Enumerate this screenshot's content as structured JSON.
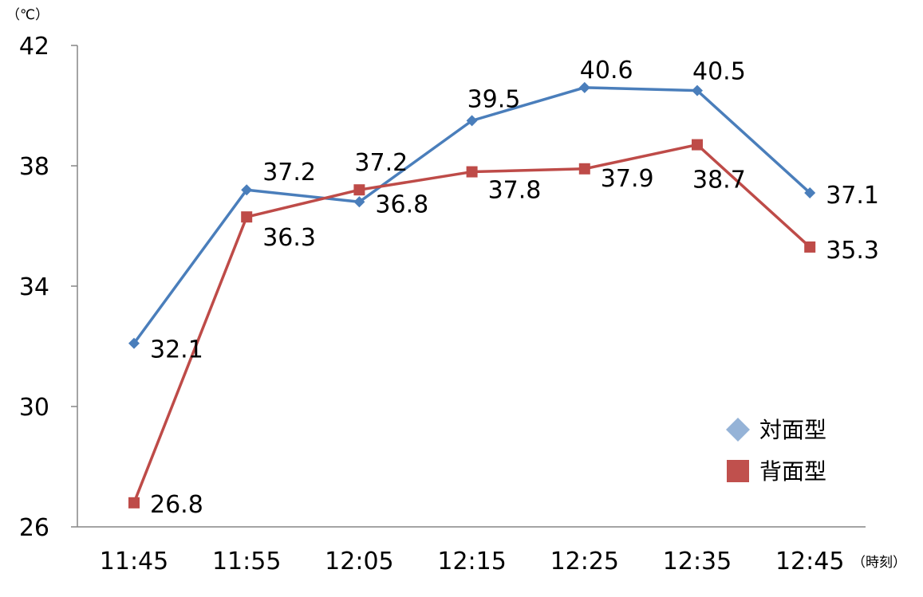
{
  "chart_data": {
    "type": "line",
    "title": "",
    "xlabel": "（時刻）",
    "ylabel": "（℃）",
    "categories": [
      "11:45",
      "11:55",
      "12:05",
      "12:15",
      "12:25",
      "12:35",
      "12:45"
    ],
    "ylim": [
      26,
      42
    ],
    "yticks": [
      "26",
      "30",
      "34",
      "38",
      "42"
    ],
    "grid": false,
    "legend": "right-bottom",
    "series": [
      {
        "name": "対面型",
        "marker": "diamond",
        "color": "#4A7EBB",
        "legend_color": "#95B3D7",
        "values": [
          32.1,
          37.2,
          36.8,
          39.5,
          40.6,
          40.5,
          37.1
        ],
        "labels": [
          "32.1",
          "37.2",
          "36.8",
          "39.5",
          "40.6",
          "40.5",
          "37.1"
        ]
      },
      {
        "name": "背面型",
        "marker": "square",
        "color": "#BE4B48",
        "legend_color": "#C0504D",
        "values": [
          26.8,
          36.3,
          37.2,
          37.8,
          37.9,
          38.7,
          35.3
        ],
        "labels": [
          "26.8",
          "36.3",
          "37.2",
          "37.8",
          "37.9",
          "38.7",
          "35.3"
        ]
      }
    ]
  }
}
